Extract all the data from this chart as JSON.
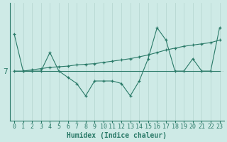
{
  "xlabel": "Humidex (Indice chaleur)",
  "ylabel": "7",
  "background_color": "#ceeae6",
  "line_color": "#2a7a68",
  "grid_color": "#b8d8d2",
  "x": [
    0,
    1,
    2,
    3,
    4,
    5,
    6,
    7,
    8,
    9,
    10,
    11,
    12,
    13,
    14,
    15,
    16,
    17,
    18,
    19,
    20,
    21,
    22,
    23
  ],
  "y_jagged": [
    10,
    7,
    7,
    7,
    8.5,
    7,
    6.5,
    6,
    5,
    6.2,
    6.2,
    6.2,
    6.0,
    5.0,
    6.2,
    8.0,
    10.5,
    9.5,
    7,
    7,
    8,
    7,
    7,
    10.5
  ],
  "y_flat": [
    7,
    7,
    7,
    7,
    7,
    7,
    7,
    7,
    7,
    7,
    7,
    7,
    7,
    7,
    7,
    7,
    7,
    7,
    7,
    7,
    7,
    7,
    7,
    7
  ],
  "y_trend": [
    7,
    7,
    7.1,
    7.2,
    7.3,
    7.35,
    7.4,
    7.5,
    7.55,
    7.6,
    7.7,
    7.8,
    7.9,
    8.0,
    8.15,
    8.3,
    8.5,
    8.7,
    8.85,
    9.0,
    9.1,
    9.2,
    9.3,
    9.5
  ],
  "xtick_labels": [
    "0",
    "1",
    "2",
    "3",
    "4",
    "5",
    "6",
    "7",
    "8",
    "9",
    "10",
    "11",
    "12",
    "13",
    "14",
    "15",
    "16",
    "17",
    "18",
    "19",
    "20",
    "21",
    "22",
    "23"
  ],
  "figsize": [
    3.2,
    2.0
  ],
  "dpi": 100,
  "font_size": 7
}
